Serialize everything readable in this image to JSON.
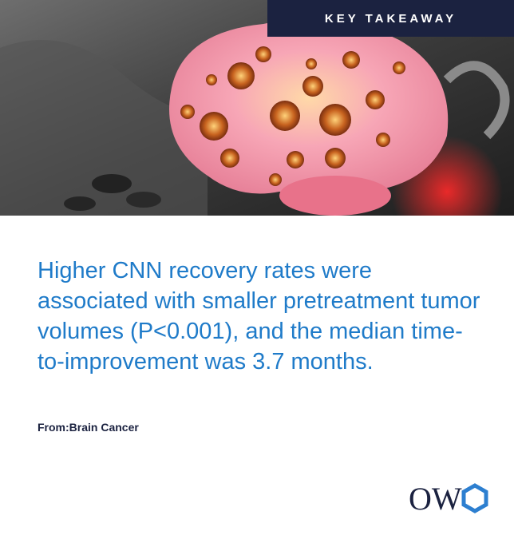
{
  "badge": "KEY TAKEAWAY",
  "headline": "Higher CNN recovery rates were associated with smaller pretreatment tumor volumes (P<0.001), and the median time-to-improvement was 3.7 months.",
  "source": {
    "label": "From:",
    "name": "Brain Cancer"
  },
  "logo": {
    "text": "OW"
  }
}
